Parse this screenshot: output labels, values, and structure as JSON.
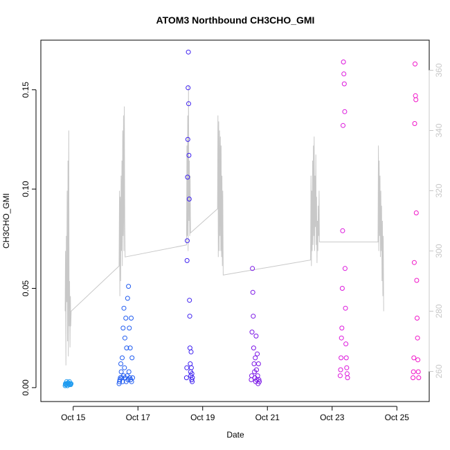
{
  "chart_data": {
    "type": "scatter",
    "title": "ATOM3 Northbound CH3CHO_GMI",
    "xlabel": "Date",
    "ylabel": "CH3CHO_GMI",
    "y2label": "",
    "xlim": [
      "2017-10-14",
      "2017-10-26"
    ],
    "x_ticks": [
      "2017-10-15",
      "2017-10-17",
      "2017-10-19",
      "2017-10-21",
      "2017-10-23",
      "2017-10-25"
    ],
    "x_tick_labels": [
      "Oct 15",
      "Oct 17",
      "Oct 19",
      "Oct 21",
      "Oct 23",
      "Oct 25"
    ],
    "ylim": [
      -0.007,
      0.175
    ],
    "y_ticks": [
      0.0,
      0.05,
      0.1,
      0.15
    ],
    "y_tick_labels": [
      "0.00",
      "0.05",
      "0.10",
      "0.15"
    ],
    "y2lim": [
      250,
      370
    ],
    "y2_ticks": [
      260,
      280,
      300,
      320,
      340,
      360
    ],
    "y2_tick_labels": [
      "260",
      "280",
      "300",
      "320",
      "340",
      "360"
    ],
    "grid": false,
    "legend": "none",
    "colors": {
      "line": "#c8c8c8",
      "flight1": "#1e9bf0",
      "flight2": "#1e5af0",
      "flight3": "#3c1ef0",
      "flight4": "#7a14e6",
      "flight5": "#dc14dc",
      "flight6": "#f014c8"
    },
    "series": [
      {
        "color_key": "flight1",
        "start": "2017-10-14",
        "x_hours": [
          18.0,
          18.2,
          18.5,
          18.8,
          19.1,
          19.4,
          19.7,
          20.0,
          20.3,
          20.6,
          20.9,
          21.2,
          21.5,
          21.8,
          22.1,
          22.4
        ],
        "y": [
          0.001,
          0.002,
          0.0015,
          0.002,
          0.003,
          0.002,
          0.001,
          0.002,
          0.0025,
          0.002,
          0.0015,
          0.003,
          0.002,
          0.002,
          0.0015,
          0.002
        ]
      },
      {
        "color_key": "flight2",
        "start": "2017-10-16",
        "x_hours": [
          10.0,
          10.3,
          10.6,
          11.0,
          11.3,
          11.6,
          12.0,
          12.3,
          12.6,
          13.0,
          13.3,
          13.6,
          14.0,
          14.3,
          14.6,
          15.0,
          15.3,
          15.6,
          16.0,
          16.3,
          16.6,
          17.0,
          17.3,
          17.6,
          18.0,
          18.3,
          18.6,
          19.0,
          19.3,
          19.6,
          20.0
        ],
        "y": [
          0.002,
          0.003,
          0.004,
          0.005,
          0.012,
          0.008,
          0.005,
          0.015,
          0.003,
          0.03,
          0.006,
          0.04,
          0.01,
          0.025,
          0.005,
          0.035,
          0.003,
          0.02,
          0.006,
          0.045,
          0.004,
          0.051,
          0.008,
          0.03,
          0.005,
          0.02,
          0.004,
          0.035,
          0.003,
          0.015,
          0.005
        ]
      },
      {
        "color_key": "flight3",
        "start": "2017-10-18",
        "x_hours": [
          12.0,
          12.2,
          12.4,
          12.6,
          12.8,
          13.0,
          13.2,
          13.4,
          13.6,
          13.8,
          14.0,
          14.2,
          14.4,
          14.6,
          14.8,
          15.0,
          15.2,
          15.4,
          15.6,
          15.8,
          16.0,
          16.2,
          16.4
        ],
        "y": [
          0.005,
          0.01,
          0.064,
          0.074,
          0.106,
          0.125,
          0.151,
          0.169,
          0.143,
          0.117,
          0.095,
          0.044,
          0.036,
          0.02,
          0.012,
          0.008,
          0.006,
          0.018,
          0.01,
          0.004,
          0.007,
          0.003,
          0.005
        ]
      },
      {
        "color_key": "flight4",
        "start": "2017-10-20",
        "x_hours": [
          12.0,
          12.3,
          12.6,
          12.9,
          13.2,
          13.5,
          13.8,
          14.1,
          14.4,
          14.7,
          15.0,
          15.3,
          15.6,
          15.9,
          16.2,
          16.5,
          16.8,
          17.1,
          17.4,
          17.7,
          18.0
        ],
        "y": [
          0.004,
          0.006,
          0.028,
          0.06,
          0.048,
          0.036,
          0.02,
          0.012,
          0.008,
          0.005,
          0.015,
          0.003,
          0.026,
          0.009,
          0.004,
          0.017,
          0.006,
          0.002,
          0.012,
          0.004,
          0.003
        ]
      },
      {
        "color_key": "flight5",
        "start": "2017-10-22",
        "x_hours": [
          30.0,
          30.3,
          30.6,
          30.9,
          31.2,
          31.5,
          31.8,
          32.1,
          32.4,
          32.7,
          33.0,
          33.3,
          33.6,
          33.9,
          34.2,
          34.5,
          34.8,
          35.1,
          35.4
        ],
        "y": [
          0.006,
          0.009,
          0.015,
          0.025,
          0.03,
          0.05,
          0.079,
          0.132,
          0.164,
          0.158,
          0.153,
          0.139,
          0.06,
          0.04,
          0.022,
          0.015,
          0.01,
          0.007,
          0.005
        ]
      },
      {
        "color_key": "flight6",
        "start": "2017-10-24",
        "x_hours": [
          36.0,
          36.3,
          36.6,
          36.9,
          37.2,
          37.5,
          37.8,
          38.1,
          38.4,
          38.7,
          39.0,
          39.3,
          39.6,
          39.9,
          40.2
        ],
        "y": [
          0.005,
          0.008,
          0.015,
          0.063,
          0.133,
          0.163,
          0.147,
          0.145,
          0.088,
          0.054,
          0.035,
          0.025,
          0.014,
          0.008,
          0.005
        ]
      }
    ],
    "line_series": {
      "axis": "right",
      "start": "2017-10-14",
      "x_hours": [
        18.0,
        18.3,
        18.6,
        18.9,
        19.2,
        19.5,
        19.8,
        20.1,
        20.4,
        20.7,
        21.0,
        21.3,
        21.6,
        21.9,
        22.2,
        22.5,
        58.0,
        58.3,
        58.6,
        58.9,
        59.2,
        59.5,
        59.8,
        60.1,
        60.4,
        60.7,
        61.0,
        61.3,
        61.6,
        61.9,
        62.2,
        62.5,
        108.0,
        108.3,
        108.6,
        108.9,
        109.2,
        109.5,
        109.8,
        110.1,
        110.4,
        110.7,
        111.0,
        131.0,
        131.3,
        131.6,
        131.9,
        132.2,
        132.5,
        132.8,
        133.1,
        133.4,
        133.7,
        134.0,
        134.3,
        134.6,
        134.9,
        135.2,
        200.0,
        200.3,
        200.6,
        200.9,
        201.2,
        201.5,
        201.8,
        202.1,
        202.4,
        202.7,
        203.0,
        203.3,
        203.6,
        203.9,
        204.2,
        204.5,
        204.8,
        205.1,
        205.4,
        205.7,
        206.0,
        206.3,
        206.6,
        250.0,
        250.3,
        250.6,
        250.9,
        251.2,
        251.5,
        251.8,
        252.1,
        252.4,
        252.7,
        253.0,
        253.3,
        253.6,
        253.9,
        254.2
      ],
      "y": [
        280,
        300,
        262,
        305,
        283,
        320,
        270,
        330,
        265,
        340,
        275,
        290,
        268,
        285,
        275,
        280,
        295,
        320,
        285,
        318,
        290,
        325,
        300,
        330,
        295,
        340,
        305,
        345,
        300,
        348,
        310,
        298,
        302,
        335,
        305,
        345,
        300,
        355,
        310,
        330,
        305,
        325,
        306,
        314,
        345,
        298,
        343,
        300,
        340,
        305,
        338,
        300,
        335,
        298,
        325,
        295,
        320,
        292,
        297,
        325,
        295,
        320,
        300,
        330,
        302,
        335,
        305,
        338,
        300,
        325,
        308,
        332,
        302,
        318,
        296,
        310,
        300,
        315,
        305,
        320,
        303,
        303,
        335,
        300,
        330,
        305,
        325,
        298,
        320,
        300,
        315,
        290,
        310,
        285,
        305,
        280
      ]
    }
  }
}
